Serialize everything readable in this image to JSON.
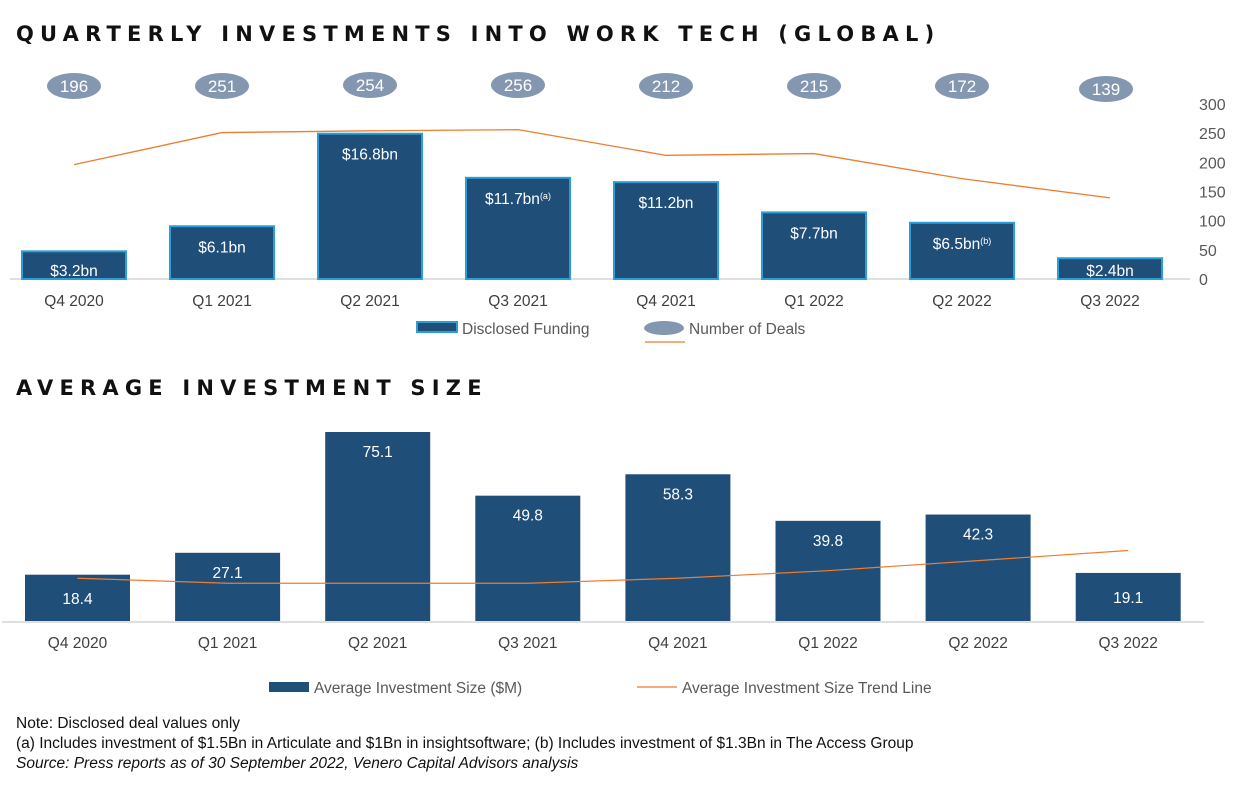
{
  "chart_data": [
    {
      "type": "bar",
      "title": "QUARTERLY INVESTMENTS INTO WORK TECH (GLOBAL)",
      "categories": [
        "Q4 2020",
        "Q1 2021",
        "Q2 2021",
        "Q3 2021",
        "Q4 2021",
        "Q1 2022",
        "Q2 2022",
        "Q3 2022"
      ],
      "series": [
        {
          "name": "Disclosed Funding",
          "type": "bar",
          "values": [
            3.2,
            6.1,
            16.8,
            11.7,
            11.2,
            7.7,
            6.5,
            2.4
          ],
          "labels": [
            "$3.2bn",
            "$6.1bn",
            "$16.8bn",
            "$11.7bn",
            "$11.2bn",
            "$7.7bn",
            "$6.5bn",
            "$2.4bn"
          ],
          "label_superscripts": [
            "",
            "",
            "",
            "(a)",
            "",
            "",
            "(b)",
            ""
          ]
        },
        {
          "name": "Number of Deals",
          "type": "line",
          "axis": "right",
          "values": [
            196,
            251,
            254,
            256,
            212,
            215,
            172,
            139
          ]
        }
      ],
      "y_right_ticks": [
        "300",
        "250",
        "200",
        "150",
        "100",
        "50",
        "0"
      ],
      "ylim_right": [
        0,
        300
      ],
      "ylim_left": [
        0,
        17
      ],
      "legend": "bottom",
      "colors": {
        "bar": "#1f4e79",
        "bar_border": "#2a9fd6",
        "line": "#ed7d31",
        "bubble": "#8497b0"
      }
    },
    {
      "type": "bar",
      "title": "AVERAGE INVESTMENT SIZE",
      "categories": [
        "Q4 2020",
        "Q1 2021",
        "Q2 2021",
        "Q3 2021",
        "Q4 2021",
        "Q1 2022",
        "Q2 2022",
        "Q3 2022"
      ],
      "series": [
        {
          "name": "Average Investment Size ($M)",
          "type": "bar",
          "values": [
            18.4,
            27.1,
            75.1,
            49.8,
            58.3,
            39.8,
            42.3,
            19.1
          ],
          "labels": [
            "18.4",
            "27.1",
            "75.1",
            "49.8",
            "58.3",
            "39.8",
            "42.3",
            "19.1"
          ]
        },
        {
          "name": "Average Investment Size Trend Line",
          "type": "line",
          "values": [
            17,
            15,
            15,
            15,
            17,
            20,
            24,
            28
          ]
        }
      ],
      "ylim": [
        0,
        80
      ],
      "legend": "bottom",
      "colors": {
        "bar": "#1f4e79",
        "line": "#ed7d31"
      }
    }
  ],
  "notes": {
    "note": "Note: Disclosed deal values only",
    "footnote": "(a) Includes investment of $1.5Bn in Articulate and $1Bn in insightsoftware; (b) Includes investment of $1.3Bn in The Access Group",
    "source": "Source: Press reports as of 30 September 2022, Venero Capital Advisors analysis"
  }
}
